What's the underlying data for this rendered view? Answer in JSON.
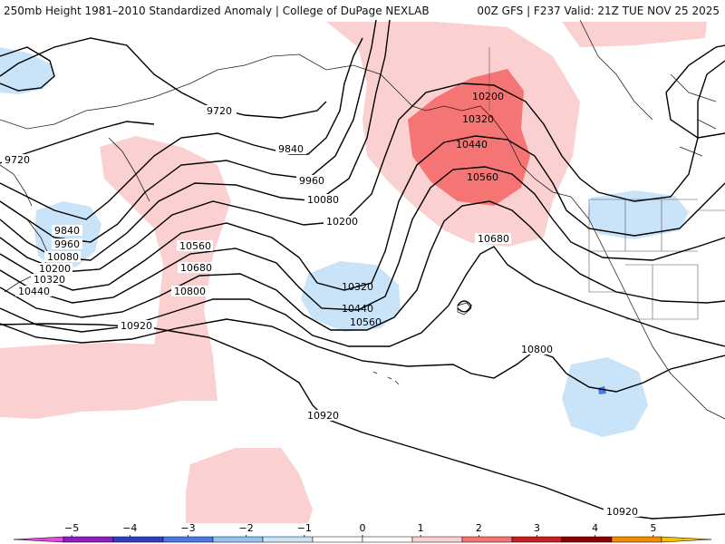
{
  "header": {
    "left_title": "250mb Height 1981–2010 Standardized Anomaly | College of DuPage NEXLAB",
    "right_title": "00Z GFS | F237 Valid: 21Z TUE NOV 25 2025"
  },
  "colors": {
    "neg_1": "#c9e3f9",
    "neg_2": "#93c2f0",
    "neg_3": "#4a78e0",
    "pos_1": "#fbd0d0",
    "pos_2": "#f57575",
    "pos_3": "#c81e1e",
    "contour": "#000000",
    "coast": "#222222"
  },
  "contour_labels": {
    "l9720_a": "9720",
    "l9720_b": "9720",
    "l9840_a": "9840",
    "l9840_b": "9840",
    "l9960_a": "9960",
    "l9960_b": "9960",
    "l10080_a": "10080",
    "l10080_b": "10080",
    "l10200_a": "10200",
    "l10200_b": "10200",
    "l10200_c": "10200",
    "l10320_a": "10320",
    "l10320_b": "10320",
    "l10320_c": "10320",
    "l10440_a": "10440",
    "l10440_b": "10440",
    "l10440_c": "10440",
    "l10560_a": "10560",
    "l10560_b": "10560",
    "l10560_c": "10560",
    "l10680_a": "10680",
    "l10680_b": "10680",
    "l10800_a": "10800",
    "l10800_b": "10800",
    "l10920_a": "10920",
    "l10920_b": "10920",
    "l10920_c": "10920"
  },
  "colorbar": {
    "ticks": [
      "−5",
      "−4",
      "−3",
      "−2",
      "−1",
      "0",
      "1",
      "2",
      "3",
      "4",
      "5"
    ],
    "colors": [
      "#e04ad8",
      "#8a1fc0",
      "#2e3fc0",
      "#4a78e0",
      "#93c2f0",
      "#c9e3f9",
      "#ffffff",
      "#ffffff",
      "#fbd0d0",
      "#f57575",
      "#c81e1e",
      "#8a0000",
      "#f08c00",
      "#f7c300"
    ]
  }
}
